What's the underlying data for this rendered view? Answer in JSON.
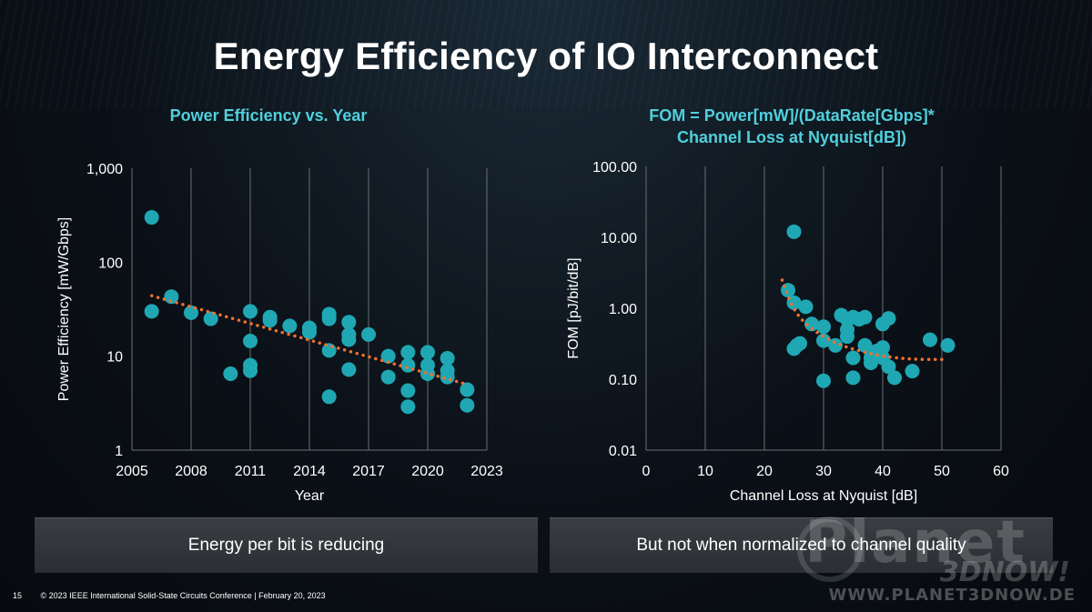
{
  "slide": {
    "title": "Energy Efficiency of IO Interconnect",
    "page_number": "15",
    "footer": "© 2023 IEEE International Solid-State Circuits Conference | February 20, 2023"
  },
  "captions": {
    "left": "Energy per bit is reducing",
    "right": "But not when normalized to channel quality"
  },
  "watermark": {
    "brand": "Planet",
    "brand_sub": "3DNOW!",
    "url": "WWW.PLANET3DNOW.DE"
  },
  "colors": {
    "marker": "#1fa8b4",
    "trend": "#f07030",
    "grid": "#6b6f74",
    "subtitle": "#4fd0dc"
  },
  "chart_data": [
    {
      "type": "scatter",
      "title": "Power Efficiency vs. Year",
      "xlabel": "Year",
      "ylabel": "Power Efficiency [mW/Gbps]",
      "xlim": [
        2005,
        2023
      ],
      "ylim": [
        1,
        1000
      ],
      "yscale": "log",
      "xticks": [
        "2005",
        "2008",
        "2011",
        "2014",
        "2017",
        "2020",
        "2023"
      ],
      "yticks": [
        "1,000",
        "100",
        "10",
        "1"
      ],
      "grid": "vertical",
      "series": [
        {
          "points": [
            [
              2006,
              300
            ],
            [
              2006,
              30
            ],
            [
              2007,
              43
            ],
            [
              2008,
              29
            ],
            [
              2009,
              25
            ],
            [
              2010,
              6.5
            ],
            [
              2011,
              30
            ],
            [
              2011,
              14.5
            ],
            [
              2011,
              8
            ],
            [
              2011,
              7
            ],
            [
              2012,
              26
            ],
            [
              2012,
              24
            ],
            [
              2013,
              21
            ],
            [
              2014,
              20
            ],
            [
              2014,
              18
            ],
            [
              2015,
              28
            ],
            [
              2015,
              25
            ],
            [
              2015,
              11.5
            ],
            [
              2015,
              3.7
            ],
            [
              2016,
              23
            ],
            [
              2016,
              17
            ],
            [
              2016,
              15
            ],
            [
              2016,
              7.2
            ],
            [
              2017,
              17
            ],
            [
              2018,
              10
            ],
            [
              2018,
              6
            ],
            [
              2019,
              11
            ],
            [
              2019,
              8
            ],
            [
              2019,
              4.3
            ],
            [
              2019,
              2.9
            ],
            [
              2020,
              11
            ],
            [
              2020,
              8
            ],
            [
              2020,
              6.5
            ],
            [
              2021,
              9.5
            ],
            [
              2021,
              7
            ],
            [
              2021,
              6
            ],
            [
              2022,
              4.4
            ],
            [
              2022,
              3
            ]
          ]
        }
      ],
      "trendline": {
        "type": "exponential",
        "from": [
          2006,
          44
        ],
        "to": [
          2022,
          5
        ]
      }
    },
    {
      "type": "scatter",
      "title": "FOM = Power[mW]/(DataRate[Gbps]*\nChannel Loss at Nyquist[dB])",
      "xlabel": "Channel Loss at Nyquist [dB]",
      "ylabel": "FOM [pJ/bit/dB]",
      "xlim": [
        0,
        60
      ],
      "ylim": [
        0.01,
        100
      ],
      "yscale": "log",
      "xticks": [
        "0",
        "10",
        "20",
        "30",
        "40",
        "50",
        "60"
      ],
      "yticks": [
        "100.00",
        "10.00",
        "1.00",
        "0.10",
        "0.01"
      ],
      "grid": "vertical",
      "series": [
        {
          "points": [
            [
              25,
              12
            ],
            [
              24,
              1.8
            ],
            [
              25,
              1.2
            ],
            [
              27,
              1.05
            ],
            [
              25.5,
              0.3
            ],
            [
              25,
              0.27
            ],
            [
              26,
              0.32
            ],
            [
              28,
              0.6
            ],
            [
              30,
              0.55
            ],
            [
              30,
              0.35
            ],
            [
              30,
              0.095
            ],
            [
              32,
              0.3
            ],
            [
              33,
              0.8
            ],
            [
              34,
              0.7
            ],
            [
              35,
              0.75
            ],
            [
              36,
              0.7
            ],
            [
              37,
              0.75
            ],
            [
              34,
              0.5
            ],
            [
              34,
              0.4
            ],
            [
              35,
              0.2
            ],
            [
              35,
              0.105
            ],
            [
              37,
              0.3
            ],
            [
              38,
              0.2
            ],
            [
              38,
              0.17
            ],
            [
              39,
              0.25
            ],
            [
              40,
              0.6
            ],
            [
              41,
              0.72
            ],
            [
              40,
              0.28
            ],
            [
              40,
              0.2
            ],
            [
              41,
              0.15
            ],
            [
              42,
              0.105
            ],
            [
              45,
              0.13
            ],
            [
              48,
              0.36
            ],
            [
              51,
              0.3
            ]
          ]
        }
      ],
      "trendline": {
        "type": "power",
        "points": [
          [
            23,
            2.5
          ],
          [
            25,
            0.9
          ],
          [
            28,
            0.5
          ],
          [
            32,
            0.32
          ],
          [
            36,
            0.25
          ],
          [
            40,
            0.21
          ],
          [
            45,
            0.19
          ],
          [
            51,
            0.19
          ]
        ]
      }
    }
  ]
}
